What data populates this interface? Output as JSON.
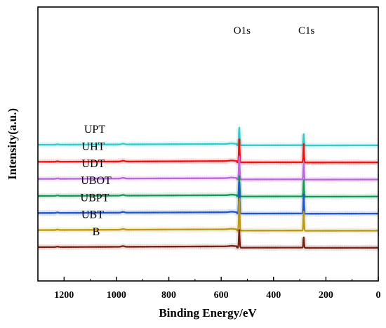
{
  "chart_data": {
    "type": "line",
    "title": "",
    "xlabel": "Binding Energy/eV",
    "ylabel": "Intensity(a.u.)",
    "xlim": [
      1300,
      0
    ],
    "x_reversed": true,
    "x_ticks": [
      1200,
      1000,
      800,
      600,
      400,
      200,
      0
    ],
    "y_ticks_shown": false,
    "grid": false,
    "peak_annotations": [
      {
        "label": "O1s",
        "x": 531
      },
      {
        "label": "C1s",
        "x": 285
      }
    ],
    "series": [
      {
        "name": "UPT",
        "color": "#33cccc",
        "offset": 6,
        "peaks": {
          "O1s": 1.0,
          "C1s": 0.65
        }
      },
      {
        "name": "UHT",
        "color": "#ee1111",
        "offset": 5,
        "peaks": {
          "O1s": 1.3,
          "C1s": 1.05
        }
      },
      {
        "name": "UDT",
        "color": "#bb66dd",
        "offset": 4,
        "peaks": {
          "O1s": 1.3,
          "C1s": 0.95
        }
      },
      {
        "name": "UBOT",
        "color": "#119955",
        "offset": 3,
        "peaks": {
          "O1s": 1.15,
          "C1s": 0.95
        }
      },
      {
        "name": "UBPT",
        "color": "#2255cc",
        "offset": 2,
        "peaks": {
          "O1s": 1.75,
          "C1s": 1.1
        }
      },
      {
        "name": "UBT",
        "color": "#bb9911",
        "offset": 1,
        "peaks": {
          "O1s": 1.8,
          "C1s": 1.1
        }
      },
      {
        "name": "B",
        "color": "#772211",
        "offset": 0,
        "peaks": {
          "O1s": 1.0,
          "C1s": 0.6
        }
      }
    ]
  }
}
